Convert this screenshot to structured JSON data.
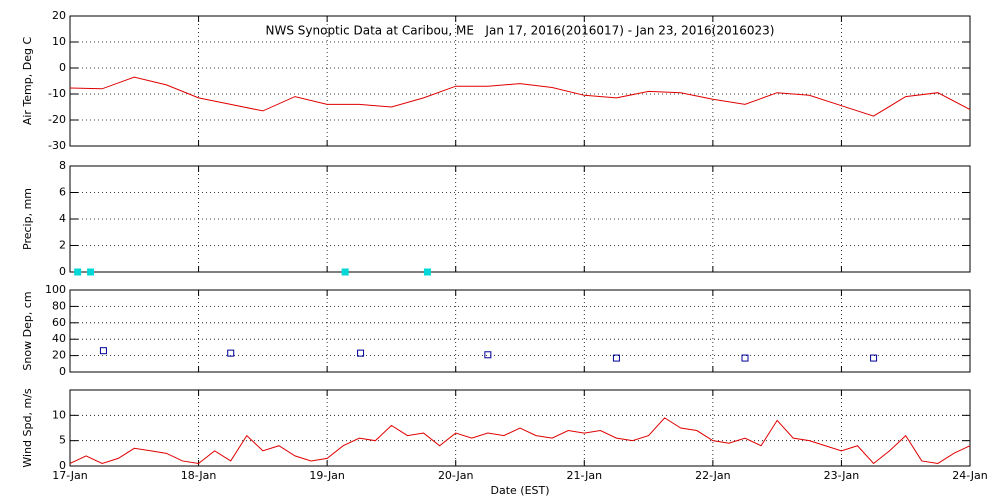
{
  "chart_data": [
    {
      "type": "line",
      "title": "NWS Synoptic Data at Caribou, ME   Jan 17, 2016(2016017) - Jan 23, 2016(2016023)",
      "ylabel": "Air Temp, Deg C",
      "color": "#e00000",
      "x": [
        0,
        0.25,
        0.5,
        0.75,
        1,
        1.25,
        1.5,
        1.75,
        2,
        2.25,
        2.5,
        2.75,
        3,
        3.25,
        3.5,
        3.75,
        4,
        4.25,
        4.5,
        4.75,
        5,
        5.25,
        5.5,
        5.75,
        6,
        6.25,
        6.5,
        6.75,
        7
      ],
      "values": [
        -7.7,
        -8,
        -3.5,
        -6.5,
        -11.5,
        -14,
        -16.5,
        -11,
        -14,
        -14,
        -15,
        -11.5,
        -7,
        -7,
        -6,
        -7.5,
        -10.5,
        -11.5,
        -9,
        -9.5,
        -12,
        -14,
        -9.5,
        -10.5,
        -14.5,
        -18.5,
        -11,
        -9.5,
        -16
      ],
      "xlim": [
        0,
        7
      ],
      "xticks": [
        0,
        1,
        2,
        3,
        4,
        5,
        6,
        7
      ],
      "ylim": [
        -30,
        20
      ],
      "yticks": [
        -30,
        -20,
        -10,
        0,
        10,
        20
      ],
      "grid": true
    },
    {
      "type": "scatter",
      "ylabel": "Precip, mm",
      "color": "#00d8d8",
      "filled": true,
      "x": [
        0.06,
        0.16,
        2.14,
        2.78
      ],
      "values": [
        0,
        0,
        0,
        0
      ],
      "xlim": [
        0,
        7
      ],
      "xticks": [
        0,
        1,
        2,
        3,
        4,
        5,
        6,
        7
      ],
      "ylim": [
        0,
        8
      ],
      "yticks": [
        0,
        2,
        4,
        6,
        8
      ],
      "grid": true
    },
    {
      "type": "scatter",
      "ylabel": "Snow Dep, cm",
      "color": "#000099",
      "filled": false,
      "x": [
        0.26,
        1.25,
        2.26,
        3.25,
        4.25,
        5.25,
        6.25
      ],
      "values": [
        26,
        23,
        23,
        21,
        17,
        17,
        17
      ],
      "xlim": [
        0,
        7
      ],
      "xticks": [
        0,
        1,
        2,
        3,
        4,
        5,
        6,
        7
      ],
      "ylim": [
        0,
        100
      ],
      "yticks": [
        0,
        20,
        40,
        60,
        80,
        100
      ],
      "grid": true
    },
    {
      "type": "line",
      "ylabel": "Wind Spd, m/s",
      "xlabel": "Date (EST)",
      "color": "#e00000",
      "x": [
        0,
        0.125,
        0.25,
        0.375,
        0.5,
        0.625,
        0.75,
        0.875,
        1,
        1.125,
        1.25,
        1.375,
        1.5,
        1.625,
        1.75,
        1.875,
        2,
        2.125,
        2.25,
        2.375,
        2.5,
        2.625,
        2.75,
        2.875,
        3,
        3.125,
        3.25,
        3.375,
        3.5,
        3.625,
        3.75,
        3.875,
        4,
        4.125,
        4.25,
        4.375,
        4.5,
        4.625,
        4.75,
        4.875,
        5,
        5.125,
        5.25,
        5.375,
        5.5,
        5.625,
        5.75,
        5.875,
        6,
        6.125,
        6.25,
        6.375,
        6.5,
        6.625,
        6.75,
        6.875,
        7
      ],
      "values": [
        0.5,
        2,
        0.5,
        1.5,
        3.5,
        3,
        2.5,
        1,
        0.5,
        3,
        1,
        6,
        3,
        4,
        2,
        1,
        1.5,
        4,
        5.5,
        5,
        8,
        6,
        6.5,
        4,
        6.5,
        5.5,
        6.5,
        6,
        7.5,
        6,
        5.5,
        7,
        6.5,
        7,
        5.5,
        5,
        6,
        9.5,
        7.5,
        7,
        5,
        4.5,
        5.5,
        4,
        9,
        5.5,
        5,
        4,
        3,
        4,
        0.5,
        3,
        6,
        1,
        0.5,
        2.5,
        4
      ],
      "xlim": [
        0,
        7
      ],
      "xticks": [
        {
          "value": 0,
          "label": "17-Jan"
        },
        {
          "value": 1,
          "label": "18-Jan"
        },
        {
          "value": 2,
          "label": "19-Jan"
        },
        {
          "value": 3,
          "label": "20-Jan"
        },
        {
          "value": 4,
          "label": "21-Jan"
        },
        {
          "value": 5,
          "label": "22-Jan"
        },
        {
          "value": 6,
          "label": "23-Jan"
        },
        {
          "value": 7,
          "label": "24-Jan"
        }
      ],
      "ylim": [
        0,
        15
      ],
      "yticks": [
        0,
        5,
        10
      ],
      "grid": true
    }
  ]
}
